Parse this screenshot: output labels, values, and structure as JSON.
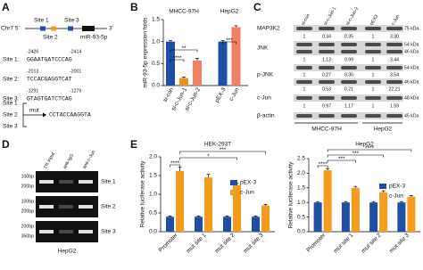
{
  "panel_labels": [
    "A",
    "B",
    "C",
    "D",
    "E"
  ],
  "panel_a": {
    "chr_left": "Chr7 5'",
    "chr_right": "3'",
    "sites": [
      "Site 1",
      "Site 2",
      "Site 3"
    ],
    "gene": "miR-93-5p",
    "sequences": [
      {
        "start": -2426,
        "end": -2414,
        "label": "Site 1:",
        "seq": "GGAATGATCCCAG"
      },
      {
        "start": -2013,
        "end": -2001,
        "label": "Site 2:",
        "seq": "TCCACGAGGTCAT"
      },
      {
        "start": -1291,
        "end": -1279,
        "label": "Site 3:",
        "seq": "GTAGTGATCTCAG"
      }
    ],
    "mut_sites": [
      "Site 1",
      "Site 2",
      "Site 3"
    ],
    "mut": "mut",
    "mut_seq": "CCTACCAAGGTA"
  },
  "panel_c": {
    "columns": [
      "si-con",
      "si-c-Jun-1",
      "si-c-Jun-2",
      "pEX3",
      "c-Jun"
    ],
    "rows": [
      "MAP3K2",
      "JNK",
      "p-JNK",
      "c-Jun",
      "β-actin"
    ],
    "kda": [
      "75 kDa",
      "54 kDa",
      "46 kDa",
      "54 kDa",
      "46 kDa",
      "48 kDa",
      "45 kDa"
    ],
    "quant": [
      [
        "1",
        "0.34",
        "0.35",
        "1",
        "3.30"
      ],
      [
        "1",
        "1.13",
        "0.99",
        "1",
        "3.44"
      ],
      [
        "1",
        "0.27",
        "0.30",
        "1",
        "3.54"
      ],
      [
        "1",
        "0.53",
        "0.21",
        "1",
        "22.21"
      ],
      [
        "1",
        "0.97",
        "1.17",
        "1",
        "1.59"
      ]
    ],
    "groups": [
      "MHCC-97H",
      "HepG2"
    ]
  },
  "panel_d": {
    "lanes": [
      "1% input",
      "anti-IgG",
      "anti-c-Jun"
    ],
    "ladders": [
      [
        "100bp",
        "200bp"
      ],
      [
        "100bp",
        "200bp"
      ],
      [
        "200bp",
        "350bp"
      ]
    ],
    "sites": [
      "Site 1",
      "Site 2",
      "Site 3"
    ],
    "cell": "HepG2"
  },
  "chart_data": [
    {
      "type": "bar",
      "ylabel": "miR-93-5p expression folds",
      "group_labels": [
        "MHCC-97H",
        "HepG2"
      ],
      "categories": [
        "si-con",
        "si-c-Jun-1",
        "si-c-Jun-2",
        "pEX-3",
        "c-Jun"
      ],
      "values": [
        1.0,
        0.17,
        0.57,
        1.0,
        1.33
      ],
      "errors": [
        0.02,
        0.02,
        0.05,
        0.02,
        0.03
      ],
      "colors": [
        "#1f4fa3",
        "#f28e1c",
        "#ef8166",
        "#1f4fa3",
        "#ef8166"
      ],
      "ylim": [
        0,
        1.5
      ],
      "yticks": [
        {
          "value": 0,
          "label": "0.0"
        },
        0.5,
        {
          "value": 1,
          "label": "1.0"
        },
        1.5
      ],
      "annotations": [
        "****",
        "**",
        "***"
      ]
    },
    {
      "type": "bar",
      "title": "HEK-293T",
      "ylabel": "Relative luciferase activity",
      "categories": [
        "Promoter",
        "mut site 1",
        "mut site 2",
        "mut site 3"
      ],
      "series": [
        {
          "name": "pEX-3",
          "color": "#1f4fa3",
          "values": [
            0.4,
            0.4,
            0.4,
            0.4
          ],
          "errors": [
            0.02,
            0.02,
            0.02,
            0.02
          ]
        },
        {
          "name": "c-Jun",
          "color": "#f39c1e",
          "values": [
            1.62,
            1.45,
            1.25,
            0.7
          ],
          "errors": [
            0.1,
            0.08,
            0.05,
            0.03
          ]
        }
      ],
      "ylim": [
        0,
        2
      ],
      "yticks": [
        {
          "value": 0,
          "label": "0.0"
        },
        0.5,
        {
          "value": 1,
          "label": "1.0"
        },
        1.5,
        {
          "value": 2,
          "label": "2.0"
        }
      ],
      "annotations": [
        "***",
        "*",
        "****"
      ]
    },
    {
      "type": "bar",
      "title": "HepG2",
      "ylabel": "Relative luciferase activity",
      "categories": [
        "Promoter",
        "mut site 1",
        "mut site 2",
        "mut site 3"
      ],
      "series": [
        {
          "name": "pEX-3",
          "color": "#1f4fa3",
          "values": [
            1,
            1,
            1,
            1
          ],
          "errors": [
            0.03,
            0.03,
            0.03,
            0.03
          ]
        },
        {
          "name": "c-Jun",
          "color": "#f39c1e",
          "values": [
            2.1,
            1.5,
            1.35,
            1.2
          ],
          "errors": [
            0.06,
            0.05,
            0.05,
            0.04
          ]
        }
      ],
      "ylim": [
        0,
        2.5
      ],
      "yticks": [
        {
          "value": 0,
          "label": "0.0"
        },
        0.5,
        {
          "value": 1,
          "label": "1.0"
        },
        1.5,
        {
          "value": 2,
          "label": "2.0"
        },
        2.5
      ],
      "annotations": [
        "****",
        "***",
        "***",
        "****"
      ]
    }
  ]
}
